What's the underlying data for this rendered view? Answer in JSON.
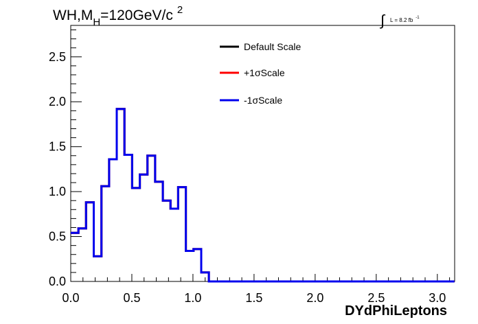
{
  "chart_data": {
    "type": "step",
    "title_prefix": "WH,M",
    "title_sub": "H",
    "title_mid": "=120GeV/c",
    "title_sup": "2",
    "lumi_text": "L = 8.2 fb",
    "lumi_exp": "-1",
    "xlabel": "DYdPhiLeptons",
    "ylabel": "",
    "xlim": [
      0,
      3.1416
    ],
    "ylim": [
      0,
      2.85
    ],
    "grid": false,
    "legend_position": "top-center",
    "x_ticks": [
      {
        "value": 0.0,
        "label": "0.0"
      },
      {
        "value": 0.5,
        "label": "0.5"
      },
      {
        "value": 1.0,
        "label": "1.0"
      },
      {
        "value": 1.5,
        "label": "1.5"
      },
      {
        "value": 2.0,
        "label": "2.0"
      },
      {
        "value": 2.5,
        "label": "2.5"
      },
      {
        "value": 3.0,
        "label": "3.0"
      }
    ],
    "y_ticks": [
      {
        "value": 0.0,
        "label": "0.0"
      },
      {
        "value": 0.5,
        "label": "0.5"
      },
      {
        "value": 1.0,
        "label": "1.0"
      },
      {
        "value": 1.5,
        "label": "1.5"
      },
      {
        "value": 2.0,
        "label": "2.0"
      },
      {
        "value": 2.5,
        "label": "2.5"
      }
    ],
    "bin_width": 0.0628,
    "series": [
      {
        "name": "Default Scale",
        "color": "#000000",
        "values": [
          0.54,
          0.59,
          0.88,
          0.28,
          1.06,
          1.36,
          1.92,
          1.41,
          1.04,
          1.19,
          1.4,
          1.11,
          0.9,
          0.81,
          1.05,
          0.34,
          0.36,
          0.1,
          0,
          0,
          0,
          0,
          0,
          0,
          0,
          0,
          0,
          0,
          0,
          0,
          0,
          0,
          0,
          0,
          0,
          0,
          0,
          0,
          0,
          0,
          0,
          0,
          0,
          0,
          0,
          0,
          0,
          0,
          0,
          0
        ]
      },
      {
        "name": "+1σScale",
        "color": "#ff0000",
        "values": [
          0.54,
          0.59,
          0.88,
          0.28,
          1.06,
          1.36,
          1.92,
          1.41,
          1.04,
          1.19,
          1.4,
          1.11,
          0.9,
          0.81,
          1.05,
          0.34,
          0.36,
          0.1,
          0,
          0,
          0,
          0,
          0,
          0,
          0,
          0,
          0,
          0,
          0,
          0,
          0,
          0,
          0,
          0,
          0,
          0,
          0,
          0,
          0,
          0,
          0,
          0,
          0,
          0,
          0,
          0,
          0,
          0,
          0,
          0
        ]
      },
      {
        "name": "-1σScale",
        "color": "#0000ee",
        "values": [
          0.54,
          0.59,
          0.88,
          0.28,
          1.06,
          1.36,
          1.92,
          1.41,
          1.04,
          1.19,
          1.4,
          1.11,
          0.9,
          0.81,
          1.05,
          0.34,
          0.36,
          0.1,
          0,
          0,
          0,
          0,
          0,
          0,
          0,
          0,
          0,
          0,
          0,
          0,
          0,
          0,
          0,
          0,
          0,
          0,
          0,
          0,
          0,
          0,
          0,
          0,
          0,
          0,
          0,
          0,
          0,
          0,
          0,
          0
        ]
      }
    ]
  }
}
